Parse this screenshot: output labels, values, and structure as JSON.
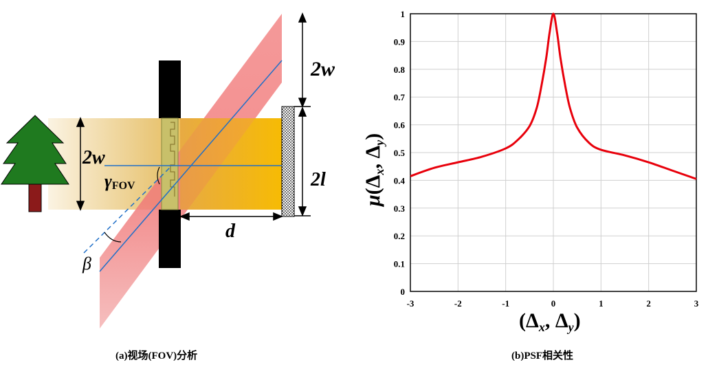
{
  "left_panel": {
    "caption": "(a)视场(FOV)分析",
    "labels": {
      "top_2w": "2w",
      "left_2w": "2w",
      "gamma": "γ",
      "gamma_sub": "FOV",
      "length_2l": "2l",
      "distance_d": "d",
      "beta": "β"
    },
    "colors": {
      "beam": "#f5b800",
      "red_plane": "#f07a7a",
      "tree": "#1f7a1f",
      "trunk": "#8b1a1a",
      "rays": "#1f6fc8"
    }
  },
  "right_panel": {
    "caption": "(b)PSF相关性",
    "xlabel_main": "(Δ",
    "xlabel_x": "x",
    "xlabel_mid": ", Δ",
    "xlabel_y": "y",
    "xlabel_end": ")",
    "ylabel_mu": "μ",
    "ylabel_open": "(Δ",
    "ylabel_x": "x",
    "ylabel_mid": ", Δ",
    "ylabel_y": "y",
    "ylabel_end": ")"
  },
  "chart_data": {
    "type": "line",
    "xlim": [
      -3,
      3
    ],
    "ylim": [
      0,
      1
    ],
    "xticks": [
      "-3",
      "-2",
      "-1",
      "0",
      "1",
      "2",
      "3"
    ],
    "yticks": [
      "0",
      "0.1",
      "0.2",
      "0.3",
      "0.4",
      "0.5",
      "0.6",
      "0.7",
      "0.8",
      "0.9",
      "1"
    ],
    "grid": true,
    "line_color": "#e8000b",
    "series": [
      {
        "x": [
          -3,
          -2.5,
          -2,
          -1.5,
          -1,
          -0.75,
          -0.5,
          -0.35,
          -0.25,
          -0.15,
          -0.08,
          0,
          0.08,
          0.15,
          0.25,
          0.35,
          0.5,
          0.75,
          1,
          1.5,
          2,
          2.5,
          3
        ],
        "y": [
          0.415,
          0.445,
          0.465,
          0.485,
          0.515,
          0.545,
          0.595,
          0.66,
          0.74,
          0.84,
          0.93,
          1.0,
          0.93,
          0.84,
          0.74,
          0.66,
          0.59,
          0.535,
          0.51,
          0.49,
          0.465,
          0.435,
          0.405
        ]
      }
    ]
  }
}
